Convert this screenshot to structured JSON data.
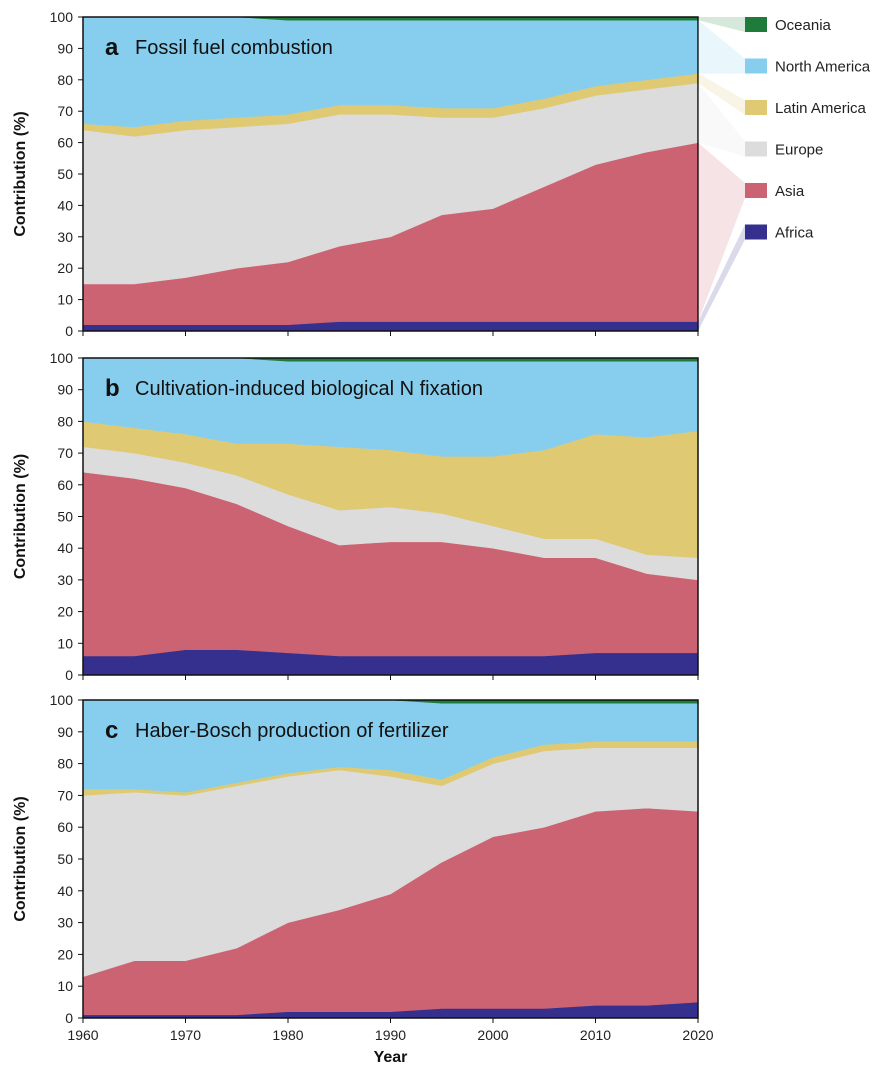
{
  "chart_data": {
    "type": "area",
    "stacked": true,
    "ylabel": "Contribution (%)",
    "xlabel": "Year",
    "xlim": [
      1960,
      2020
    ],
    "ylim": [
      0,
      100
    ],
    "x_ticks": [
      1960,
      1970,
      1980,
      1990,
      2000,
      2010,
      2020
    ],
    "y_ticks": [
      0,
      10,
      20,
      30,
      40,
      50,
      60,
      70,
      80,
      90,
      100
    ],
    "legend": [
      {
        "name": "Oceania",
        "color": "#1e7b3a"
      },
      {
        "name": "North America",
        "color": "#87ceee"
      },
      {
        "name": "Latin America",
        "color": "#dfca73"
      },
      {
        "name": "Europe",
        "color": "#dcdcdc"
      },
      {
        "name": "Asia",
        "color": "#cc6373"
      },
      {
        "name": "Africa",
        "color": "#35308e"
      }
    ],
    "x": [
      1960,
      1965,
      1970,
      1975,
      1980,
      1985,
      1990,
      1995,
      2000,
      2005,
      2010,
      2015,
      2020
    ],
    "panels": [
      {
        "letter": "a",
        "title": "Fossil fuel combustion",
        "series": [
          {
            "name": "Africa",
            "values": [
              2,
              2,
              2,
              2,
              2,
              3,
              3,
              3,
              3,
              3,
              3,
              3,
              3
            ]
          },
          {
            "name": "Asia",
            "values": [
              13,
              13,
              15,
              18,
              20,
              24,
              27,
              34,
              36,
              43,
              50,
              54,
              57
            ]
          },
          {
            "name": "Europe",
            "values": [
              49,
              47,
              47,
              45,
              44,
              42,
              39,
              31,
              29,
              25,
              22,
              20,
              19
            ]
          },
          {
            "name": "Latin America",
            "values": [
              2,
              3,
              3,
              3,
              3,
              3,
              3,
              3,
              3,
              3,
              3,
              3,
              3
            ]
          },
          {
            "name": "North America",
            "values": [
              34,
              35,
              33,
              32,
              30,
              27,
              27,
              28,
              28,
              25,
              21,
              19,
              17
            ]
          },
          {
            "name": "Oceania",
            "values": [
              0,
              0,
              0,
              0,
              1,
              1,
              1,
              1,
              1,
              1,
              1,
              1,
              1
            ]
          }
        ]
      },
      {
        "letter": "b",
        "title": "Cultivation-induced biological N fixation",
        "series": [
          {
            "name": "Africa",
            "values": [
              6,
              6,
              8,
              8,
              7,
              6,
              6,
              6,
              6,
              6,
              7,
              7,
              7
            ]
          },
          {
            "name": "Asia",
            "values": [
              58,
              56,
              51,
              46,
              40,
              35,
              36,
              36,
              34,
              31,
              30,
              25,
              23
            ]
          },
          {
            "name": "Europe",
            "values": [
              8,
              8,
              8,
              9,
              10,
              11,
              11,
              9,
              7,
              6,
              6,
              6,
              7
            ]
          },
          {
            "name": "Latin America",
            "values": [
              8,
              8,
              9,
              10,
              16,
              20,
              18,
              18,
              22,
              28,
              33,
              37,
              40
            ]
          },
          {
            "name": "North America",
            "values": [
              20,
              22,
              24,
              27,
              26,
              27,
              28,
              30,
              30,
              28,
              23,
              24,
              22
            ]
          },
          {
            "name": "Oceania",
            "values": [
              0,
              0,
              0,
              0,
              1,
              1,
              1,
              1,
              1,
              1,
              1,
              1,
              1
            ]
          }
        ]
      },
      {
        "letter": "c",
        "title": "Haber-Bosch production of fertilizer",
        "series": [
          {
            "name": "Africa",
            "values": [
              1,
              1,
              1,
              1,
              2,
              2,
              2,
              3,
              3,
              3,
              4,
              4,
              5
            ]
          },
          {
            "name": "Asia",
            "values": [
              12,
              17,
              17,
              21,
              28,
              32,
              37,
              46,
              54,
              57,
              61,
              62,
              60
            ]
          },
          {
            "name": "Europe",
            "values": [
              57,
              53,
              52,
              51,
              46,
              44,
              37,
              24,
              23,
              24,
              20,
              19,
              20
            ]
          },
          {
            "name": "Latin America",
            "values": [
              2,
              1,
              1,
              1,
              1,
              1,
              2,
              2,
              2,
              2,
              2,
              2,
              2
            ]
          },
          {
            "name": "North America",
            "values": [
              28,
              28,
              29,
              26,
              23,
              21,
              22,
              24,
              17,
              13,
              12,
              12,
              12
            ]
          },
          {
            "name": "Oceania",
            "values": [
              0,
              0,
              0,
              0,
              0,
              0,
              0,
              1,
              1,
              1,
              1,
              1,
              1
            ]
          }
        ]
      }
    ]
  }
}
